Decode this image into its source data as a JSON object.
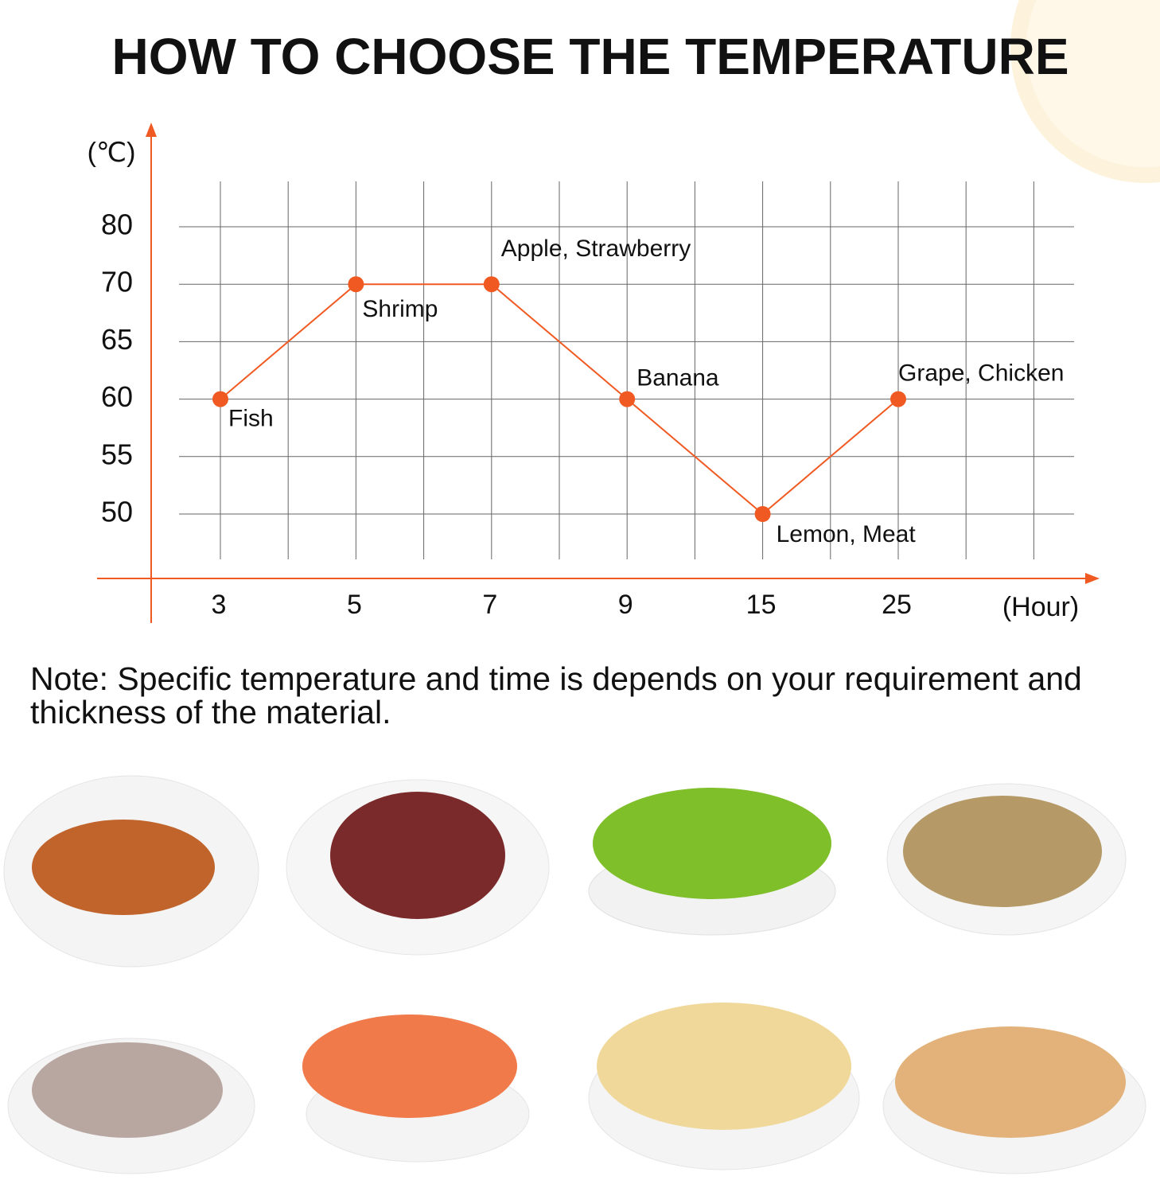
{
  "chart_data": {
    "type": "line",
    "title": "HOW TO CHOOSE THE TEMPERATURE",
    "y_label": "(℃)",
    "x_label": "(Hour)",
    "categories": [
      3,
      5,
      7,
      9,
      15,
      25
    ],
    "values": [
      60,
      70,
      70,
      60,
      50,
      60
    ],
    "point_labels": [
      "Fish",
      "Shrimp",
      "Apple, Strawberry",
      "Banana",
      "Lemon, Meat",
      "Grape, Chicken"
    ],
    "yticks": [
      80,
      70,
      65,
      60,
      55,
      50
    ],
    "color": "#f05a22",
    "grid": true
  },
  "note": "Note: Specific temperature and time is depends on your requirement and thickness of the material."
}
